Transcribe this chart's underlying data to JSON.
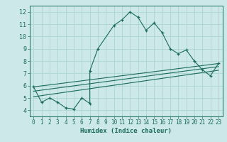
{
  "xlabel": "Humidex (Indice chaleur)",
  "bg_color": "#cce8e8",
  "line_color": "#1a6b5a",
  "grid_color": "#b0d8d8",
  "xlim": [
    -0.5,
    23.5
  ],
  "ylim": [
    3.5,
    12.5
  ],
  "xticks": [
    0,
    1,
    2,
    3,
    4,
    5,
    6,
    7,
    8,
    9,
    10,
    11,
    12,
    13,
    14,
    15,
    16,
    17,
    18,
    19,
    20,
    21,
    22,
    23
  ],
  "yticks": [
    4,
    5,
    6,
    7,
    8,
    9,
    10,
    11,
    12
  ],
  "series": [
    [
      0,
      5.9
    ],
    [
      1,
      4.65
    ],
    [
      2,
      5.0
    ],
    [
      3,
      4.65
    ],
    [
      4,
      4.2
    ],
    [
      5,
      4.1
    ],
    [
      6,
      5.0
    ],
    [
      7,
      4.55
    ],
    [
      7,
      7.2
    ],
    [
      8,
      9.0
    ],
    [
      10,
      10.9
    ],
    [
      11,
      11.35
    ],
    [
      12,
      12.0
    ],
    [
      13,
      11.55
    ],
    [
      14,
      10.5
    ],
    [
      15,
      11.1
    ],
    [
      16,
      10.3
    ],
    [
      17,
      9.0
    ],
    [
      18,
      8.6
    ],
    [
      19,
      8.9
    ],
    [
      20,
      8.0
    ],
    [
      21,
      7.3
    ],
    [
      22,
      6.8
    ],
    [
      23,
      7.8
    ]
  ],
  "line1": [
    [
      0,
      5.9
    ],
    [
      23,
      7.8
    ]
  ],
  "line2": [
    [
      0,
      5.55
    ],
    [
      23,
      7.55
    ]
  ],
  "line3": [
    [
      0,
      5.1
    ],
    [
      23,
      7.25
    ]
  ]
}
